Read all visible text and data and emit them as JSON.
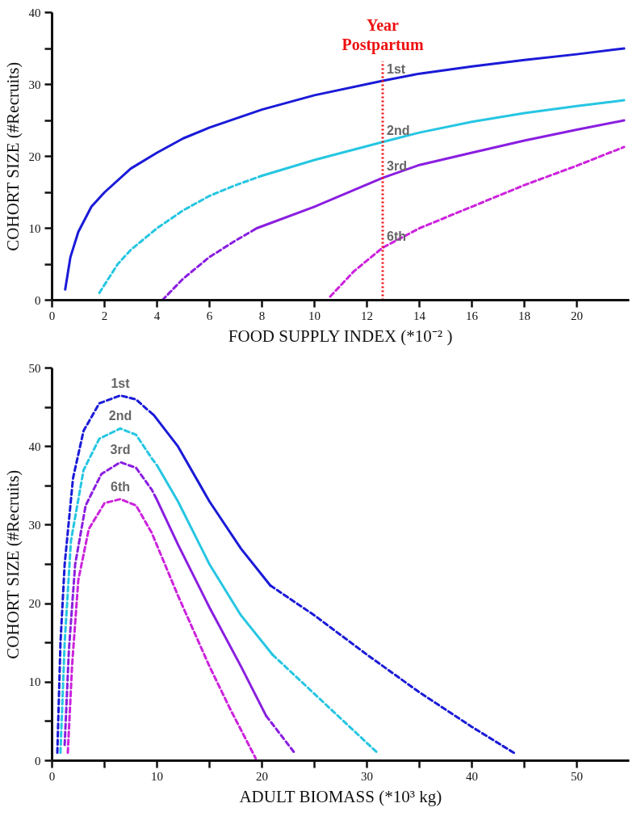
{
  "chart_data": [
    {
      "type": "line",
      "xlabel": "FOOD SUPPLY INDEX (*10⁻² )",
      "ylabel": "COHORT SIZE (#Recruits)",
      "xlim": [
        0,
        22
      ],
      "ylim": [
        0,
        40
      ],
      "xticks": [
        0,
        2,
        4,
        6,
        8,
        10,
        12,
        14,
        16,
        18,
        20
      ],
      "yticks": [
        0,
        {
          "value": 5,
          "label": null
        },
        10,
        {
          "value": 15,
          "label": null
        },
        20,
        {
          "value": 25,
          "label": null
        },
        30,
        {
          "value": 35,
          "label": null
        },
        40
      ],
      "ref_lines": [
        {
          "axis": "x",
          "value": 12.6,
          "label": "Year Postpartum",
          "color": "#ee1111",
          "line_style": "dotted"
        }
      ],
      "series": [
        {
          "name": "1st",
          "color": "#1a1ad8",
          "line_style": "solid",
          "x": [
            0.5,
            0.7,
            1,
            1.5,
            2,
            3,
            4,
            5,
            6,
            8,
            10,
            12.6,
            14,
            16,
            18,
            20,
            21.8
          ],
          "values": [
            1.5,
            6,
            9.5,
            13,
            15,
            18.3,
            20.5,
            22.5,
            24,
            26.5,
            28.5,
            30.5,
            31.5,
            32.5,
            33.4,
            34.2,
            35
          ]
        },
        {
          "color": "#26c6e2",
          "line_style": "dashed",
          "x": [
            1.8,
            2.5,
            3,
            4,
            5,
            6,
            7,
            8
          ],
          "values": [
            1,
            5,
            7,
            10,
            12.5,
            14.5,
            16,
            17.3
          ]
        },
        {
          "name": "2nd",
          "color": "#26c6e2",
          "line_style": "solid",
          "x": [
            8,
            10,
            12.6,
            14,
            16,
            18,
            20,
            21.8
          ],
          "values": [
            17.3,
            19.5,
            22,
            23.3,
            24.8,
            26,
            27,
            27.8
          ]
        },
        {
          "color": "#8a1ee0",
          "line_style": "dashed",
          "x": [
            4.2,
            5,
            6,
            7,
            7.8
          ],
          "values": [
            0,
            3,
            6,
            8.3,
            10
          ]
        },
        {
          "name": "3rd",
          "color": "#8a1ee0",
          "line_style": "solid",
          "x": [
            7.8,
            10,
            12.6,
            14,
            16,
            18,
            20,
            21.8
          ],
          "values": [
            10,
            13,
            17,
            18.8,
            20.5,
            22.2,
            23.7,
            25
          ]
        },
        {
          "name": "6th",
          "color": "#cc22dd",
          "line_style": "dashed",
          "x": [
            10.6,
            11.5,
            12.6,
            14,
            16,
            18,
            20,
            21.8
          ],
          "values": [
            0.5,
            4,
            7.3,
            10,
            13,
            16,
            18.7,
            21.3
          ]
        }
      ]
    },
    {
      "type": "line",
      "xlabel": "ADULT BIOMASS (*10³ kg)",
      "ylabel": "COHORT SIZE (#Recruits)",
      "xlim": [
        0,
        55
      ],
      "ylim": [
        0,
        50
      ],
      "xticks": [
        0,
        {
          "value": 5,
          "label": null
        },
        10,
        {
          "value": 15,
          "label": null
        },
        20,
        {
          "value": 25,
          "label": null
        },
        30,
        {
          "value": 35,
          "label": null
        },
        40,
        {
          "value": 45,
          "label": null
        },
        50
      ],
      "yticks": [
        0,
        {
          "value": 5,
          "label": null
        },
        10,
        {
          "value": 15,
          "label": null
        },
        20,
        {
          "value": 25,
          "label": null
        },
        30,
        {
          "value": 35,
          "label": null
        },
        40,
        {
          "value": 45,
          "label": null
        },
        50
      ],
      "series": [
        {
          "name": "1st",
          "color": "#1a1ad8",
          "line_style": "dashed",
          "x": [
            0.5,
            0.8,
            1.2,
            2,
            3,
            4.5,
            6.5,
            8,
            9,
            9.7
          ],
          "values": [
            1,
            15,
            25,
            36,
            42,
            45.5,
            46.5,
            46,
            44.8,
            44
          ]
        },
        {
          "color": "#1a1ad8",
          "line_style": "solid",
          "x": [
            9.7,
            12,
            15,
            18,
            20.8
          ],
          "values": [
            44,
            40,
            33,
            27,
            22.3
          ]
        },
        {
          "color": "#1a1ad8",
          "line_style": "dashed",
          "x": [
            20.8,
            25,
            30,
            35,
            40,
            44
          ],
          "values": [
            22.3,
            18.5,
            13.5,
            8.7,
            4.3,
            1
          ]
        },
        {
          "name": "2nd",
          "color": "#26c6e2",
          "line_style": "dashed",
          "x": [
            0.8,
            1.2,
            1.8,
            3,
            4.5,
            6.5,
            8,
            9.5,
            10
          ],
          "values": [
            1,
            15,
            28,
            37,
            41,
            42.3,
            41.5,
            38.5,
            37.6
          ]
        },
        {
          "color": "#26c6e2",
          "line_style": "solid",
          "x": [
            10,
            12,
            15,
            18,
            21
          ],
          "values": [
            37.6,
            33,
            25,
            18.5,
            13.5
          ]
        },
        {
          "color": "#26c6e2",
          "line_style": "dashed",
          "x": [
            21,
            25,
            31
          ],
          "values": [
            13.5,
            8.5,
            1
          ]
        },
        {
          "name": "3rd",
          "color": "#8a1ee0",
          "line_style": "dashed",
          "x": [
            1.2,
            1.6,
            2.2,
            3.2,
            4.7,
            6.5,
            8,
            9.5,
            10
          ],
          "values": [
            2,
            14,
            25,
            32.5,
            36.5,
            38,
            37.3,
            34.5,
            33.2
          ]
        },
        {
          "color": "#8a1ee0",
          "line_style": "solid",
          "x": [
            10,
            12,
            15,
            18,
            20.4
          ],
          "values": [
            33.2,
            27.5,
            19.5,
            12,
            5.7
          ]
        },
        {
          "color": "#8a1ee0",
          "line_style": "dashed",
          "x": [
            20.4,
            23.1
          ],
          "values": [
            5.7,
            1
          ]
        },
        {
          "name": "6th",
          "color": "#cc22dd",
          "line_style": "dashed",
          "x": [
            1.5,
            1.9,
            2.5,
            3.5,
            5,
            6.5,
            8,
            9.5,
            10,
            12,
            15,
            17,
            19.4
          ],
          "values": [
            1,
            12,
            23,
            29.5,
            32.8,
            33.3,
            32.5,
            29,
            27.4,
            21,
            12,
            6.5,
            0.3
          ]
        }
      ]
    }
  ]
}
